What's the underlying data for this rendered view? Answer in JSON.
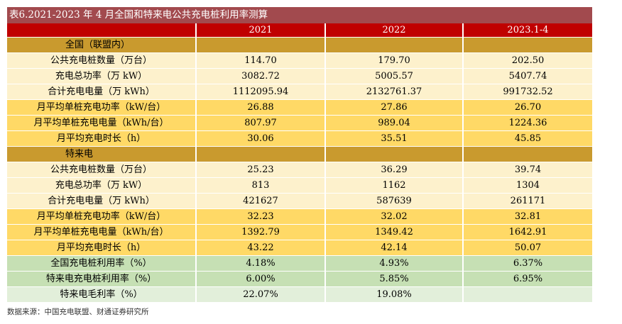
{
  "title": "表6.2021-2023 年 4 月全国和特来电公共充电桩利用率测算",
  "columns": [
    "2021",
    "2022",
    "2023.1-4"
  ],
  "sections": [
    {
      "name": "全国（联盟内）",
      "rows": [
        {
          "label": "公共充电桩数量（万台）",
          "values": [
            "114.70",
            "179.70",
            "202.50"
          ],
          "style": "light"
        },
        {
          "label": "充电总功率（万 kW）",
          "values": [
            "3082.72",
            "5005.57",
            "5407.74"
          ],
          "style": "light"
        },
        {
          "label": "合计充电电量（万 kWh）",
          "values": [
            "1112095.94",
            "2132761.37",
            "991732.52"
          ],
          "style": "light"
        },
        {
          "label": "月平均单桩充电功率（kW/台）",
          "values": [
            "26.88",
            "27.86",
            "26.70"
          ],
          "style": "yellow"
        },
        {
          "label": "月平均单桩充电电量（kWh/台）",
          "values": [
            "807.97",
            "989.04",
            "1224.36"
          ],
          "style": "yellow"
        },
        {
          "label": "月平均充电时长（h）",
          "values": [
            "30.06",
            "35.51",
            "45.85"
          ],
          "style": "yellow"
        }
      ]
    },
    {
      "name": "特来电",
      "rows": [
        {
          "label": "公共充电桩数量（万台）",
          "values": [
            "25.23",
            "36.29",
            "39.74"
          ],
          "style": "light"
        },
        {
          "label": "充电总功率（万 kW）",
          "values": [
            "813",
            "1162",
            "1304"
          ],
          "style": "light"
        },
        {
          "label": "合计充电电量（万 kWh）",
          "values": [
            "421627",
            "587639",
            "261171"
          ],
          "style": "light"
        },
        {
          "label": "月平均单桩充电功率（kW/台）",
          "values": [
            "32.23",
            "32.02",
            "32.81"
          ],
          "style": "yellow"
        },
        {
          "label": "月平均单桩充电电量（kWh/台）",
          "values": [
            "1392.79",
            "1349.42",
            "1642.91"
          ],
          "style": "yellow"
        },
        {
          "label": "月平均充电时长（h）",
          "values": [
            "43.22",
            "42.14",
            "50.07"
          ],
          "style": "yellow"
        }
      ]
    }
  ],
  "summary_rows": [
    {
      "label": "全国充电桩利用率（%）",
      "values": [
        "4.18%",
        "4.93%",
        "6.37%"
      ],
      "style": "green"
    },
    {
      "label": "特来电充电桩利用率（%）",
      "values": [
        "6.00%",
        "5.85%",
        "6.95%"
      ],
      "style": "green"
    },
    {
      "label": "特来电毛利率（%）",
      "values": [
        "22.07%",
        "19.08%",
        ""
      ],
      "style": "lgreen"
    }
  ],
  "source": "数据来源：中国充电联盟、财通证券研究所"
}
